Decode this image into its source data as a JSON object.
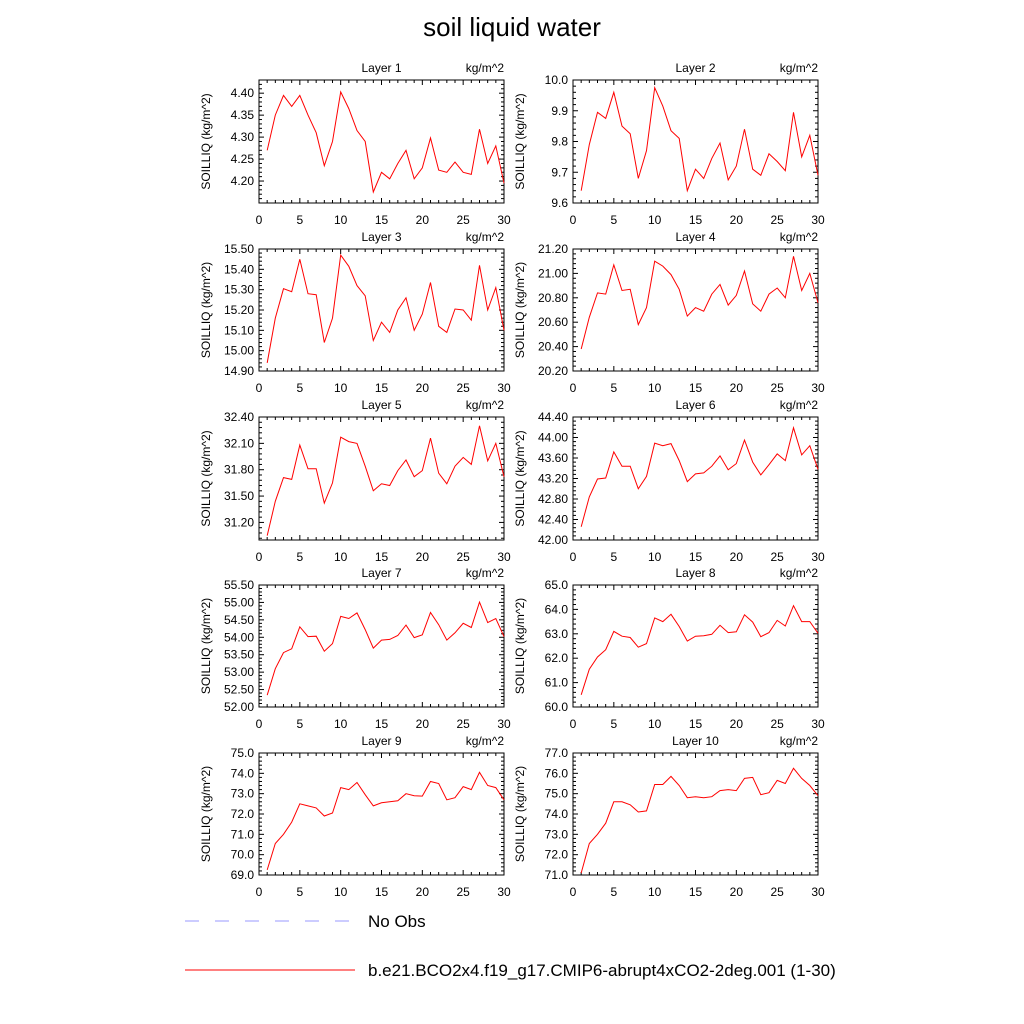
{
  "title": "soil liquid water",
  "legend": {
    "obs_label": "No Obs",
    "obs_color": "#9999ff",
    "model_label": "b.e21.BCO2x4.f19_g17.CMIP6-abrupt4xCO2-2deg.001 (1-30)",
    "model_color": "#ff0000"
  },
  "chart_data": [
    {
      "type": "line",
      "title": "Layer 1",
      "units": "kg/m^2",
      "ylabel": "SOILLIQ  (kg/m^2)",
      "xlim": [
        0,
        30
      ],
      "ylim": [
        4.15,
        4.43
      ],
      "xticks": [
        "0",
        "5",
        "10",
        "15",
        "20",
        "25",
        "30"
      ],
      "yticks": [
        "4.20",
        "4.25",
        "4.30",
        "4.35",
        "4.40"
      ],
      "x": [
        1,
        2,
        3,
        4,
        5,
        6,
        7,
        8,
        9,
        10,
        11,
        12,
        13,
        14,
        15,
        16,
        17,
        18,
        19,
        20,
        21,
        22,
        23,
        24,
        25,
        26,
        27,
        28,
        29,
        30
      ],
      "series": [
        {
          "values": [
            4.27,
            4.35,
            4.395,
            4.37,
            4.395,
            4.35,
            4.31,
            4.235,
            4.29,
            4.403,
            4.365,
            4.315,
            4.29,
            4.175,
            4.22,
            4.205,
            4.24,
            4.27,
            4.205,
            4.23,
            4.298,
            4.225,
            4.22,
            4.243,
            4.22,
            4.215,
            4.318,
            4.24,
            4.28,
            4.195
          ]
        }
      ]
    },
    {
      "type": "line",
      "title": "Layer 2",
      "units": "kg/m^2",
      "ylabel": "SOILLIQ  (kg/m^2)",
      "xlim": [
        0,
        30
      ],
      "ylim": [
        9.6,
        10.0
      ],
      "xticks": [
        "0",
        "5",
        "10",
        "15",
        "20",
        "25",
        "30"
      ],
      "yticks": [
        "9.6",
        "9.7",
        "9.8",
        "9.9",
        "10.0"
      ],
      "x": [
        1,
        2,
        3,
        4,
        5,
        6,
        7,
        8,
        9,
        10,
        11,
        12,
        13,
        14,
        15,
        16,
        17,
        18,
        19,
        20,
        21,
        22,
        23,
        24,
        25,
        26,
        27,
        28,
        29,
        30
      ],
      "series": [
        {
          "values": [
            9.64,
            9.79,
            9.895,
            9.875,
            9.96,
            9.85,
            9.825,
            9.68,
            9.77,
            9.975,
            9.915,
            9.835,
            9.81,
            9.64,
            9.71,
            9.68,
            9.745,
            9.795,
            9.675,
            9.72,
            9.84,
            9.71,
            9.69,
            9.76,
            9.735,
            9.705,
            9.895,
            9.75,
            9.82,
            9.69
          ]
        }
      ]
    },
    {
      "type": "line",
      "title": "Layer 3",
      "units": "kg/m^2",
      "ylabel": "SOILLIQ  (kg/m^2)",
      "xlim": [
        0,
        30
      ],
      "ylim": [
        14.9,
        15.5
      ],
      "xticks": [
        "0",
        "5",
        "10",
        "15",
        "20",
        "25",
        "30"
      ],
      "yticks": [
        "14.90",
        "15.00",
        "15.10",
        "15.20",
        "15.30",
        "15.40",
        "15.50"
      ],
      "x": [
        1,
        2,
        3,
        4,
        5,
        6,
        7,
        8,
        9,
        10,
        11,
        12,
        13,
        14,
        15,
        16,
        17,
        18,
        19,
        20,
        21,
        22,
        23,
        24,
        25,
        26,
        27,
        28,
        29,
        30
      ],
      "series": [
        {
          "values": [
            14.94,
            15.16,
            15.305,
            15.29,
            15.45,
            15.28,
            15.275,
            15.04,
            15.16,
            15.47,
            15.415,
            15.32,
            15.27,
            15.05,
            15.14,
            15.09,
            15.2,
            15.26,
            15.1,
            15.18,
            15.335,
            15.12,
            15.09,
            15.205,
            15.2,
            15.15,
            15.42,
            15.2,
            15.31,
            15.1
          ]
        }
      ]
    },
    {
      "type": "line",
      "title": "Layer 4",
      "units": "kg/m^2",
      "ylabel": "SOILLIQ  (kg/m^2)",
      "xlim": [
        0,
        30
      ],
      "ylim": [
        20.2,
        21.2
      ],
      "xticks": [
        "0",
        "5",
        "10",
        "15",
        "20",
        "25",
        "30"
      ],
      "yticks": [
        "20.20",
        "20.40",
        "20.60",
        "20.80",
        "21.00",
        "21.20"
      ],
      "x": [
        1,
        2,
        3,
        4,
        5,
        6,
        7,
        8,
        9,
        10,
        11,
        12,
        13,
        14,
        15,
        16,
        17,
        18,
        19,
        20,
        21,
        22,
        23,
        24,
        25,
        26,
        27,
        28,
        29,
        30
      ],
      "series": [
        {
          "values": [
            20.38,
            20.64,
            20.84,
            20.83,
            21.07,
            20.86,
            20.87,
            20.58,
            20.72,
            21.1,
            21.06,
            20.99,
            20.87,
            20.65,
            20.72,
            20.69,
            20.83,
            20.91,
            20.74,
            20.82,
            21.02,
            20.75,
            20.69,
            20.83,
            20.88,
            20.8,
            21.14,
            20.86,
            21.0,
            20.76
          ]
        }
      ]
    },
    {
      "type": "line",
      "title": "Layer 5",
      "units": "kg/m^2",
      "ylabel": "SOILLIQ  (kg/m^2)",
      "xlim": [
        0,
        30
      ],
      "ylim": [
        31.0,
        32.4
      ],
      "xticks": [
        "0",
        "5",
        "10",
        "15",
        "20",
        "25",
        "30"
      ],
      "yticks": [
        "31.20",
        "31.50",
        "31.80",
        "32.10",
        "32.40"
      ],
      "x": [
        1,
        2,
        3,
        4,
        5,
        6,
        7,
        8,
        9,
        10,
        11,
        12,
        13,
        14,
        15,
        16,
        17,
        18,
        19,
        20,
        21,
        22,
        23,
        24,
        25,
        26,
        27,
        28,
        29,
        30
      ],
      "series": [
        {
          "values": [
            31.05,
            31.44,
            31.71,
            31.69,
            32.08,
            31.81,
            31.81,
            31.42,
            31.65,
            32.17,
            32.12,
            32.1,
            31.84,
            31.56,
            31.64,
            31.62,
            31.79,
            31.91,
            31.72,
            31.79,
            32.16,
            31.76,
            31.64,
            31.84,
            31.94,
            31.86,
            32.3,
            31.9,
            32.1,
            31.72
          ]
        }
      ]
    },
    {
      "type": "line",
      "title": "Layer 6",
      "units": "kg/m^2",
      "ylabel": "SOILLIQ  (kg/m^2)",
      "xlim": [
        0,
        30
      ],
      "ylim": [
        42.0,
        44.4
      ],
      "xticks": [
        "0",
        "5",
        "10",
        "15",
        "20",
        "25",
        "30"
      ],
      "yticks": [
        "42.00",
        "42.40",
        "42.80",
        "43.20",
        "43.60",
        "44.00",
        "44.40"
      ],
      "x": [
        1,
        2,
        3,
        4,
        5,
        6,
        7,
        8,
        9,
        10,
        11,
        12,
        13,
        14,
        15,
        16,
        17,
        18,
        19,
        20,
        21,
        22,
        23,
        24,
        25,
        26,
        27,
        28,
        29,
        30
      ],
      "series": [
        {
          "values": [
            42.26,
            42.84,
            43.19,
            43.21,
            43.72,
            43.44,
            43.44,
            43.0,
            43.24,
            43.89,
            43.84,
            43.88,
            43.55,
            43.14,
            43.29,
            43.31,
            43.44,
            43.64,
            43.37,
            43.49,
            43.95,
            43.52,
            43.27,
            43.47,
            43.68,
            43.55,
            44.19,
            43.66,
            43.84,
            43.38
          ]
        }
      ]
    },
    {
      "type": "line",
      "title": "Layer 7",
      "units": "kg/m^2",
      "ylabel": "SOILLIQ  (kg/m^2)",
      "xlim": [
        0,
        30
      ],
      "ylim": [
        52.0,
        55.5
      ],
      "xticks": [
        "0",
        "5",
        "10",
        "15",
        "20",
        "25",
        "30"
      ],
      "yticks": [
        "52.00",
        "52.50",
        "53.00",
        "53.50",
        "54.00",
        "54.50",
        "55.00",
        "55.50"
      ],
      "x": [
        1,
        2,
        3,
        4,
        5,
        6,
        7,
        8,
        9,
        10,
        11,
        12,
        13,
        14,
        15,
        16,
        17,
        18,
        19,
        20,
        21,
        22,
        23,
        24,
        25,
        26,
        27,
        28,
        29,
        30
      ],
      "series": [
        {
          "values": [
            52.34,
            53.1,
            53.56,
            53.67,
            54.3,
            54.02,
            54.03,
            53.6,
            53.82,
            54.6,
            54.54,
            54.7,
            54.22,
            53.69,
            53.92,
            53.94,
            54.05,
            54.35,
            53.99,
            54.07,
            54.71,
            54.36,
            53.92,
            54.13,
            54.4,
            54.28,
            55.01,
            54.42,
            54.54,
            54.02
          ]
        }
      ]
    },
    {
      "type": "line",
      "title": "Layer 8",
      "units": "kg/m^2",
      "ylabel": "SOILLIQ  (kg/m^2)",
      "xlim": [
        0,
        30
      ],
      "ylim": [
        60.0,
        65.0
      ],
      "xticks": [
        "0",
        "5",
        "10",
        "15",
        "20",
        "25",
        "30"
      ],
      "yticks": [
        "60.0",
        "61.0",
        "62.0",
        "63.0",
        "64.0",
        "65.0"
      ],
      "x": [
        1,
        2,
        3,
        4,
        5,
        6,
        7,
        8,
        9,
        10,
        11,
        12,
        13,
        14,
        15,
        16,
        17,
        18,
        19,
        20,
        21,
        22,
        23,
        24,
        25,
        26,
        27,
        28,
        29,
        30
      ],
      "series": [
        {
          "values": [
            60.5,
            61.55,
            62.05,
            62.35,
            63.1,
            62.9,
            62.85,
            62.45,
            62.6,
            63.65,
            63.5,
            63.8,
            63.3,
            62.7,
            62.9,
            62.92,
            62.98,
            63.35,
            63.05,
            63.08,
            63.78,
            63.48,
            62.88,
            63.05,
            63.55,
            63.32,
            64.15,
            63.5,
            63.5,
            63.02
          ]
        }
      ]
    },
    {
      "type": "line",
      "title": "Layer 9",
      "units": "kg/m^2",
      "ylabel": "SOILLIQ  (kg/m^2)",
      "xlim": [
        0,
        30
      ],
      "ylim": [
        69.0,
        75.0
      ],
      "xticks": [
        "0",
        "5",
        "10",
        "15",
        "20",
        "25",
        "30"
      ],
      "yticks": [
        "69.0",
        "70.0",
        "71.0",
        "72.0",
        "73.0",
        "74.0",
        "75.0"
      ],
      "x": [
        1,
        2,
        3,
        4,
        5,
        6,
        7,
        8,
        9,
        10,
        11,
        12,
        13,
        14,
        15,
        16,
        17,
        18,
        19,
        20,
        21,
        22,
        23,
        24,
        25,
        26,
        27,
        28,
        29,
        30
      ],
      "series": [
        {
          "values": [
            69.25,
            70.55,
            71.0,
            71.6,
            72.5,
            72.4,
            72.3,
            71.9,
            72.05,
            73.3,
            73.2,
            73.55,
            72.95,
            72.4,
            72.55,
            72.6,
            72.65,
            73.0,
            72.9,
            72.88,
            73.6,
            73.5,
            72.7,
            72.8,
            73.35,
            73.2,
            74.05,
            73.4,
            73.3,
            72.7
          ]
        }
      ]
    },
    {
      "type": "line",
      "title": "Layer 10",
      "units": "kg/m^2",
      "ylabel": "SOILLIQ  (kg/m^2)",
      "xlim": [
        0,
        30
      ],
      "ylim": [
        71.0,
        77.0
      ],
      "xticks": [
        "0",
        "5",
        "10",
        "15",
        "20",
        "25",
        "30"
      ],
      "yticks": [
        "71.0",
        "72.0",
        "73.0",
        "74.0",
        "75.0",
        "76.0",
        "77.0"
      ],
      "x": [
        1,
        2,
        3,
        4,
        5,
        6,
        7,
        8,
        9,
        10,
        11,
        12,
        13,
        14,
        15,
        16,
        17,
        18,
        19,
        20,
        21,
        22,
        23,
        24,
        25,
        26,
        27,
        28,
        29,
        30
      ],
      "series": [
        {
          "values": [
            71.1,
            72.55,
            73.0,
            73.55,
            74.6,
            74.6,
            74.45,
            74.1,
            74.15,
            75.45,
            75.45,
            75.85,
            75.4,
            74.8,
            74.85,
            74.8,
            74.85,
            75.15,
            75.2,
            75.15,
            75.75,
            75.8,
            74.95,
            75.05,
            75.65,
            75.5,
            76.25,
            75.75,
            75.4,
            74.9
          ]
        }
      ]
    }
  ]
}
